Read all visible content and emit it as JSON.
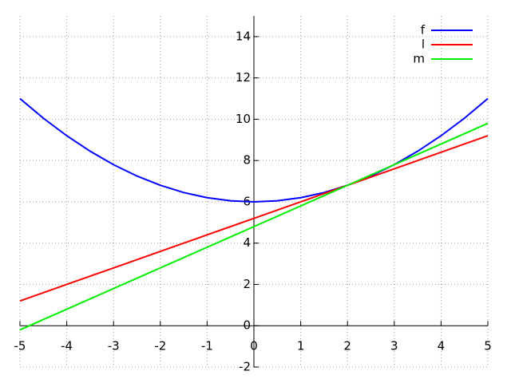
{
  "chart_data": {
    "type": "line",
    "x": [
      -5,
      -4.5,
      -4,
      -3.5,
      -3,
      -2.5,
      -2,
      -1.5,
      -1,
      -0.5,
      0,
      0.5,
      1,
      1.5,
      2,
      2.5,
      3,
      3.5,
      4,
      4.5,
      5
    ],
    "series": [
      {
        "name": "f",
        "color": "#0000ff",
        "values": [
          11,
          10.05,
          9.2,
          8.45,
          7.8,
          7.25,
          6.8,
          6.45,
          6.2,
          6.05,
          6,
          6.05,
          6.2,
          6.45,
          6.8,
          7.25,
          7.8,
          8.45,
          9.2,
          10.05,
          11
        ]
      },
      {
        "name": "l",
        "color": "#ff0000",
        "values": [
          1.2,
          1.6,
          2.0,
          2.4,
          2.8,
          3.2,
          3.6,
          4.0,
          4.4,
          4.8,
          5.2,
          5.6,
          6.0,
          6.4,
          6.8,
          7.2,
          7.6,
          8.0,
          8.4,
          8.8,
          9.2
        ]
      },
      {
        "name": "m",
        "color": "#00ee00",
        "values": [
          -0.2,
          0.3,
          0.8,
          1.3,
          1.8,
          2.3,
          2.8,
          3.3,
          3.8,
          4.3,
          4.8,
          5.3,
          5.8,
          6.3,
          6.8,
          7.3,
          7.8,
          8.3,
          8.8,
          9.3,
          9.8
        ]
      }
    ],
    "xlim": [
      -5,
      5
    ],
    "ylim": [
      -2,
      15
    ],
    "xticks": [
      -5,
      -4,
      -3,
      -2,
      -1,
      0,
      1,
      2,
      3,
      4,
      5
    ],
    "yticks": [
      -2,
      0,
      2,
      4,
      6,
      8,
      10,
      12,
      14
    ],
    "grid": true,
    "legend": "top-right"
  }
}
